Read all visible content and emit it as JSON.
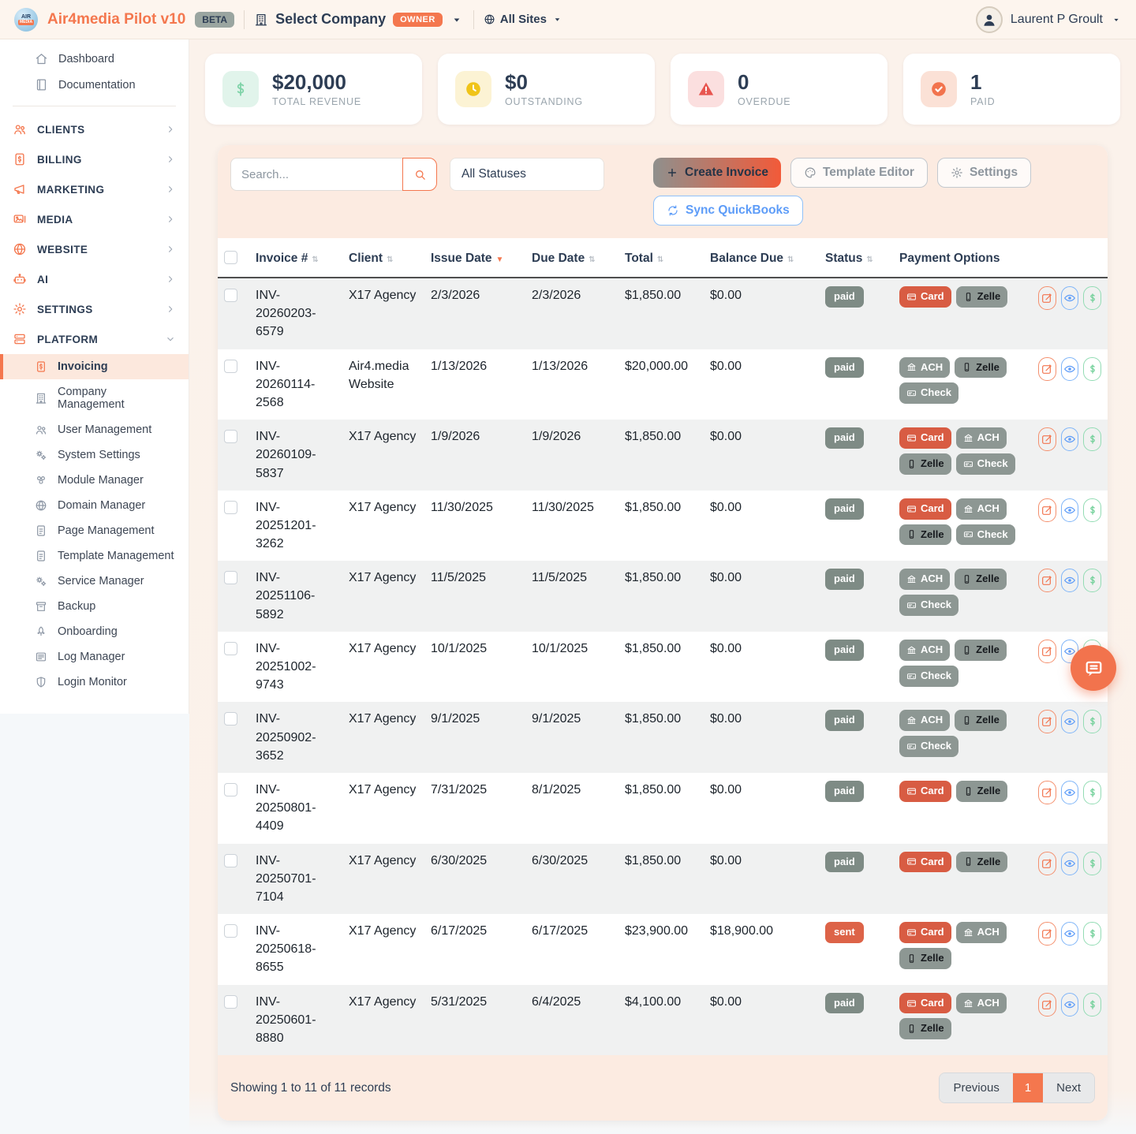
{
  "header": {
    "logo_top": "AIR",
    "logo_bottom": "MEDIA",
    "app_title": "Air4media Pilot v10",
    "beta_badge": "BETA",
    "select_company": "Select Company",
    "owner_badge": "OWNER",
    "all_sites": "All Sites",
    "user_name": "Laurent P Groult"
  },
  "sidebar": {
    "top_items": [
      {
        "label": "Dashboard",
        "icon": "home"
      },
      {
        "label": "Documentation",
        "icon": "book"
      }
    ],
    "sections": [
      {
        "label": "CLIENTS",
        "icon": "users"
      },
      {
        "label": "BILLING",
        "icon": "invoice"
      },
      {
        "label": "MARKETING",
        "icon": "megaphone"
      },
      {
        "label": "MEDIA",
        "icon": "media"
      },
      {
        "label": "WEBSITE",
        "icon": "globe"
      },
      {
        "label": "AI",
        "icon": "robot"
      },
      {
        "label": "SETTINGS",
        "icon": "gear"
      }
    ],
    "platform": {
      "label": "PLATFORM",
      "icon": "server",
      "items": [
        {
          "label": "Invoicing",
          "icon": "invoice",
          "active": true
        },
        {
          "label": "Company Management",
          "icon": "building"
        },
        {
          "label": "User Management",
          "icon": "users"
        },
        {
          "label": "System Settings",
          "icon": "gears"
        },
        {
          "label": "Module Manager",
          "icon": "modules"
        },
        {
          "label": "Domain Manager",
          "icon": "globe"
        },
        {
          "label": "Page Management",
          "icon": "file"
        },
        {
          "label": "Template Management",
          "icon": "file"
        },
        {
          "label": "Service Manager",
          "icon": "gears"
        },
        {
          "label": "Backup",
          "icon": "archive"
        },
        {
          "label": "Onboarding",
          "icon": "rocket"
        },
        {
          "label": "Log Manager",
          "icon": "loglist"
        },
        {
          "label": "Login Monitor",
          "icon": "shield"
        }
      ]
    }
  },
  "cards": [
    {
      "value": "$20,000",
      "label": "TOTAL REVENUE",
      "icon": "dollar",
      "icon_color": "#7ed3a8",
      "icon_bg": "#e1f4eb"
    },
    {
      "value": "$0",
      "label": "OUTSTANDING",
      "icon": "clockf",
      "icon_color": "#f0c419",
      "icon_bg": "#fcf3d4"
    },
    {
      "value": "0",
      "label": "OVERDUE",
      "icon": "warnf",
      "icon_color": "#e8554f",
      "icon_bg": "#fbdfdf"
    },
    {
      "value": "1",
      "label": "PAID",
      "icon": "checkf",
      "icon_color": "#f2734d",
      "icon_bg": "#fbe1d6"
    }
  ],
  "toolbar": {
    "search_placeholder": "Search...",
    "status_filter": "All Statuses",
    "create_invoice": "Create Invoice",
    "template_editor": "Template Editor",
    "settings": "Settings",
    "sync_quickbooks": "Sync QuickBooks"
  },
  "table": {
    "columns": [
      {
        "label": "Invoice #",
        "sort": "both"
      },
      {
        "label": "Client",
        "sort": "both"
      },
      {
        "label": "Issue Date",
        "sort": "desc"
      },
      {
        "label": "Due Date",
        "sort": "both"
      },
      {
        "label": "Total",
        "sort": "both"
      },
      {
        "label": "Balance Due",
        "sort": "both"
      },
      {
        "label": "Status",
        "sort": "both"
      },
      {
        "label": "Payment Options",
        "sort": "none"
      }
    ],
    "rows": [
      {
        "invoice": "INV-20260203-6579",
        "client": "X17 Agency",
        "issue": "2/3/2026",
        "due": "2/3/2026",
        "total": "$1,850.00",
        "balance": "$0.00",
        "status": "paid",
        "payments": [
          "Card",
          "Zelle"
        ]
      },
      {
        "invoice": "INV-20260114-2568",
        "client": "Air4.media Website",
        "issue": "1/13/2026",
        "due": "1/13/2026",
        "total": "$20,000.00",
        "balance": "$0.00",
        "status": "paid",
        "payments": [
          "ACH",
          "Zelle",
          "Check"
        ]
      },
      {
        "invoice": "INV-20260109-5837",
        "client": "X17 Agency",
        "issue": "1/9/2026",
        "due": "1/9/2026",
        "total": "$1,850.00",
        "balance": "$0.00",
        "status": "paid",
        "payments": [
          "Card",
          "ACH",
          "Zelle",
          "Check"
        ]
      },
      {
        "invoice": "INV-20251201-3262",
        "client": "X17 Agency",
        "issue": "11/30/2025",
        "due": "11/30/2025",
        "total": "$1,850.00",
        "balance": "$0.00",
        "status": "paid",
        "payments": [
          "Card",
          "ACH",
          "Zelle",
          "Check"
        ]
      },
      {
        "invoice": "INV-20251106-5892",
        "client": "X17 Agency",
        "issue": "11/5/2025",
        "due": "11/5/2025",
        "total": "$1,850.00",
        "balance": "$0.00",
        "status": "paid",
        "payments": [
          "ACH",
          "Zelle",
          "Check"
        ]
      },
      {
        "invoice": "INV-20251002-9743",
        "client": "X17 Agency",
        "issue": "10/1/2025",
        "due": "10/1/2025",
        "total": "$1,850.00",
        "balance": "$0.00",
        "status": "paid",
        "payments": [
          "ACH",
          "Zelle",
          "Check"
        ]
      },
      {
        "invoice": "INV-20250902-3652",
        "client": "X17 Agency",
        "issue": "9/1/2025",
        "due": "9/1/2025",
        "total": "$1,850.00",
        "balance": "$0.00",
        "status": "paid",
        "payments": [
          "ACH",
          "Zelle",
          "Check"
        ]
      },
      {
        "invoice": "INV-20250801-4409",
        "client": "X17 Agency",
        "issue": "7/31/2025",
        "due": "8/1/2025",
        "total": "$1,850.00",
        "balance": "$0.00",
        "status": "paid",
        "payments": [
          "Card",
          "Zelle"
        ]
      },
      {
        "invoice": "INV-20250701-7104",
        "client": "X17 Agency",
        "issue": "6/30/2025",
        "due": "6/30/2025",
        "total": "$1,850.00",
        "balance": "$0.00",
        "status": "paid",
        "payments": [
          "Card",
          "Zelle"
        ]
      },
      {
        "invoice": "INV-20250618-8655",
        "client": "X17 Agency",
        "issue": "6/17/2025",
        "due": "6/17/2025",
        "total": "$23,900.00",
        "balance": "$18,900.00",
        "status": "sent",
        "payments": [
          "Card",
          "ACH",
          "Zelle"
        ]
      },
      {
        "invoice": "INV-20250601-8880",
        "client": "X17 Agency",
        "issue": "5/31/2025",
        "due": "6/4/2025",
        "total": "$4,100.00",
        "balance": "$0.00",
        "status": "paid",
        "payments": [
          "Card",
          "ACH",
          "Zelle"
        ]
      }
    ]
  },
  "footer": {
    "summary": "Showing 1 to 11 of 11 records",
    "previous": "Previous",
    "page": "1",
    "next": "Next"
  },
  "colors": {
    "accent_orange": "#f4774e",
    "status_paid": "#7e8b85",
    "status_sent": "#dd6348",
    "payment_card": "#d85c43",
    "payment_gray": "#8d9793",
    "sync_blue": "#5d9cf8"
  }
}
